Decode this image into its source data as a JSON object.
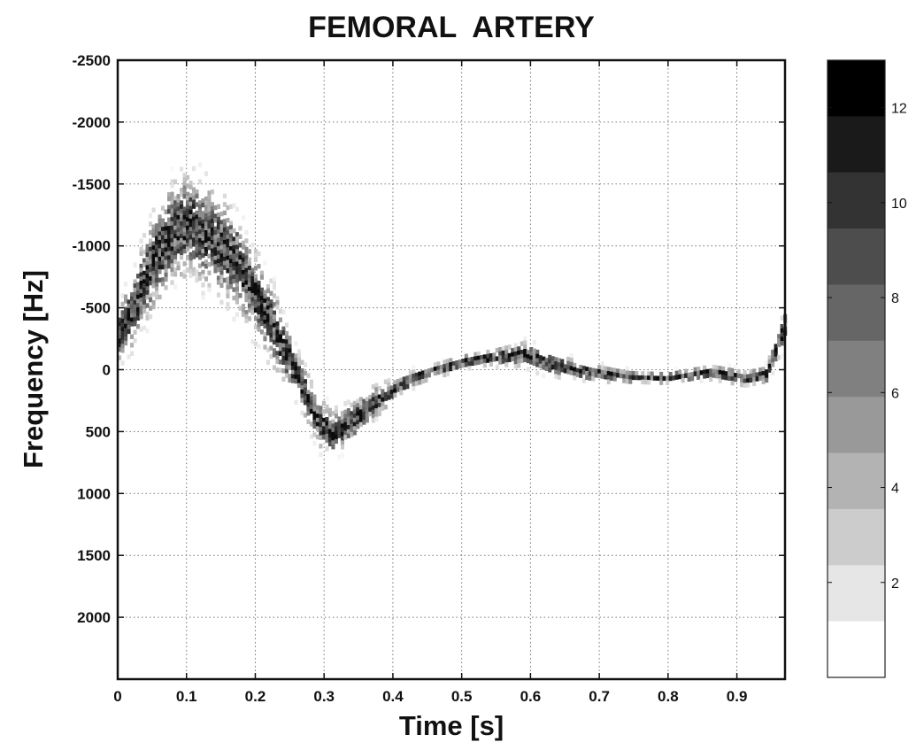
{
  "chart_data": {
    "type": "heatmap",
    "title": "FEMORAL  ARTERY",
    "xlabel": "Time [s]",
    "ylabel": "Frequency [Hz]",
    "xlim": [
      0,
      0.97
    ],
    "ylim": [
      -2500,
      2500
    ],
    "y_direction": "reversed (negative at top)",
    "x_ticks": [
      "0",
      "0.1",
      "0.2",
      "0.3",
      "0.4",
      "0.5",
      "0.6",
      "0.7",
      "0.8",
      "0.9"
    ],
    "y_ticks": [
      "-2500",
      "-2000",
      "-1500",
      "-1000",
      "-500",
      "0",
      "500",
      "1000",
      "1500",
      "2000"
    ],
    "grid": true,
    "colormap": "gray (white = low, black = high)",
    "colorbar": {
      "placement": "right",
      "range": [
        0,
        13
      ],
      "levels": 11,
      "ticks": [
        "2",
        "4",
        "6",
        "8",
        "10",
        "12"
      ]
    },
    "spectral_trace": {
      "description": "Doppler velocity spectrum, max frequency envelope over one cardiac cycle",
      "points": [
        {
          "t": 0.0,
          "f_center": -300,
          "f_spread": 250
        },
        {
          "t": 0.02,
          "f_center": -500,
          "f_spread": 300
        },
        {
          "t": 0.05,
          "f_center": -900,
          "f_spread": 400
        },
        {
          "t": 0.08,
          "f_center": -1150,
          "f_spread": 400
        },
        {
          "t": 0.1,
          "f_center": -1200,
          "f_spread": 420
        },
        {
          "t": 0.13,
          "f_center": -1100,
          "f_spread": 400
        },
        {
          "t": 0.17,
          "f_center": -900,
          "f_spread": 380
        },
        {
          "t": 0.2,
          "f_center": -600,
          "f_spread": 350
        },
        {
          "t": 0.23,
          "f_center": -300,
          "f_spread": 300
        },
        {
          "t": 0.26,
          "f_center": 50,
          "f_spread": 200
        },
        {
          "t": 0.29,
          "f_center": 400,
          "f_spread": 200
        },
        {
          "t": 0.31,
          "f_center": 500,
          "f_spread": 180
        },
        {
          "t": 0.34,
          "f_center": 400,
          "f_spread": 160
        },
        {
          "t": 0.37,
          "f_center": 250,
          "f_spread": 130
        },
        {
          "t": 0.41,
          "f_center": 100,
          "f_spread": 80
        },
        {
          "t": 0.45,
          "f_center": 0,
          "f_spread": 60
        },
        {
          "t": 0.5,
          "f_center": -80,
          "f_spread": 60
        },
        {
          "t": 0.55,
          "f_center": -120,
          "f_spread": 70
        },
        {
          "t": 0.59,
          "f_center": -140,
          "f_spread": 100
        },
        {
          "t": 0.63,
          "f_center": -60,
          "f_spread": 90
        },
        {
          "t": 0.68,
          "f_center": 0,
          "f_spread": 70
        },
        {
          "t": 0.74,
          "f_center": 40,
          "f_spread": 50
        },
        {
          "t": 0.8,
          "f_center": 50,
          "f_spread": 50
        },
        {
          "t": 0.86,
          "f_center": 0,
          "f_spread": 60
        },
        {
          "t": 0.91,
          "f_center": 50,
          "f_spread": 60
        },
        {
          "t": 0.94,
          "f_center": 30,
          "f_spread": 70
        },
        {
          "t": 0.97,
          "f_center": -400,
          "f_spread": 150
        }
      ]
    }
  }
}
